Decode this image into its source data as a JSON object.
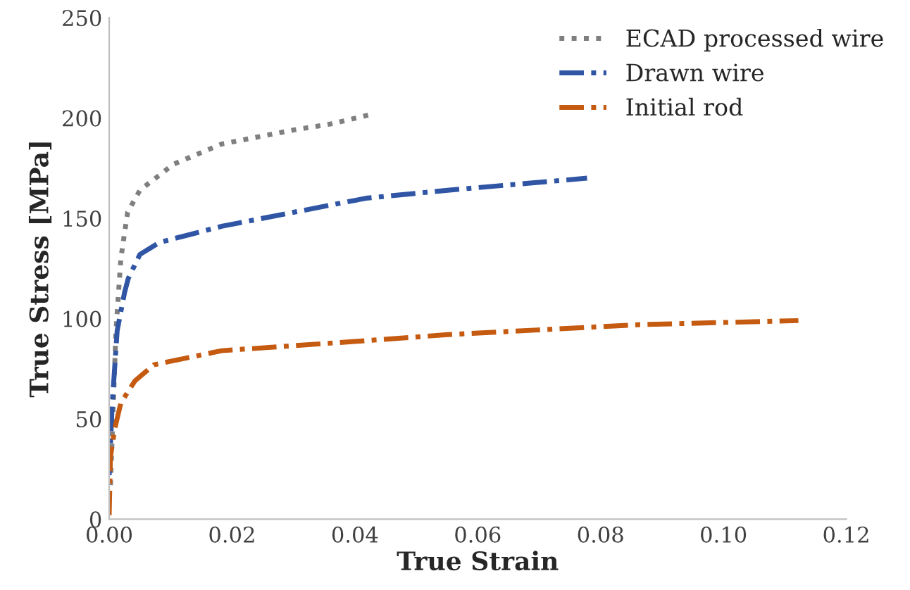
{
  "chart_data": {
    "type": "line",
    "xlabel": "True Strain",
    "ylabel": "True Stress [MPa]",
    "xlim": [
      0,
      0.12
    ],
    "xticks": [
      {
        "value": 0,
        "label": "0.00"
      },
      {
        "value": 0.02,
        "label": "0.02"
      },
      {
        "value": 0.04,
        "label": "0.04"
      },
      {
        "value": 0.06,
        "label": "0.06"
      },
      {
        "value": 0.08,
        "label": "0.08"
      },
      {
        "value": 0.1,
        "label": "0.10"
      },
      {
        "value": 0.12,
        "label": "0.12"
      }
    ],
    "ylim": [
      0,
      250
    ],
    "yticks": [
      0,
      50,
      100,
      150,
      200,
      250
    ],
    "grid": false,
    "legend": "top right",
    "series": [
      {
        "name": "ECAD processed wire",
        "color": "#7f7f7f",
        "line_style": "dotted",
        "x": [
          0.0002,
          0.0011,
          0.0019,
          0.003,
          0.005,
          0.0105,
          0.0183,
          0.03,
          0.036,
          0.043
        ],
        "values": [
          17,
          94,
          130,
          153,
          164,
          177,
          187,
          194,
          197,
          202
        ]
      },
      {
        "name": "Drawn wire",
        "color": "#2f55a4",
        "line_style": "dashed",
        "x": [
          0.0,
          0.0005,
          0.0013,
          0.0025,
          0.0031,
          0.005,
          0.0082,
          0.0183,
          0.03,
          0.0418,
          0.0551,
          0.0778
        ],
        "values": [
          22,
          58,
          94,
          113,
          120,
          132,
          138,
          146,
          153,
          160,
          164,
          170
        ]
      },
      {
        "name": "Initial rod",
        "color": "#c55a11",
        "line_style": "dashed",
        "x": [
          0.0,
          0.0002,
          0.0009,
          0.0019,
          0.0042,
          0.0073,
          0.0183,
          0.0418,
          0.0551,
          0.0864,
          0.1122
        ],
        "values": [
          2,
          31,
          45,
          58,
          69,
          77,
          84,
          89,
          92,
          97,
          99
        ]
      }
    ]
  }
}
